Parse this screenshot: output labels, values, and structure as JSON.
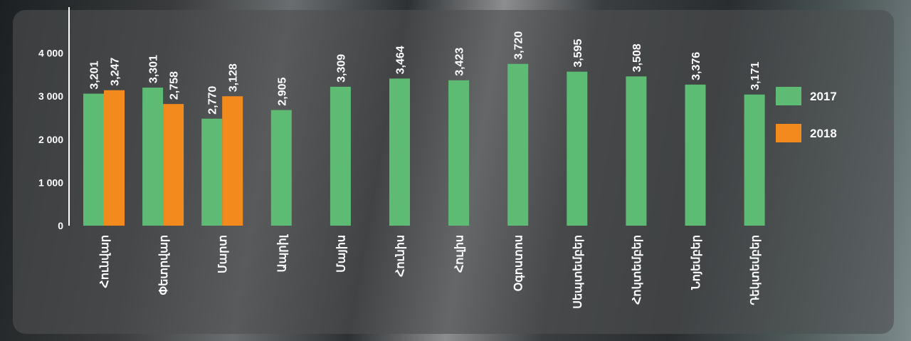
{
  "chart_data": {
    "type": "bar",
    "title": "",
    "xlabel": "",
    "ylabel": "",
    "ylim": [
      0,
      4300
    ],
    "yticks": [
      0,
      1000,
      2000,
      3000,
      4000
    ],
    "ytick_labels": [
      "0",
      "1 000",
      "2 000",
      "3 000",
      "4 000"
    ],
    "categories": [
      "Հունվար",
      "Փետրվար",
      "Մարտ",
      "Ապրիլ",
      "Մայիս",
      "Հունիս",
      "Հուլիս",
      "Օգոստոս",
      "Սեպտեմբեր",
      "Հոկտեմբեր",
      "Նոյեմբեր",
      "Դեկտեմբեր"
    ],
    "series": [
      {
        "name": "2017",
        "color": "#5dbb74",
        "values": [
          3201,
          3301,
          2770,
          2905,
          3309,
          3464,
          3423,
          3720,
          3595,
          3508,
          3376,
          3171
        ],
        "bar_heights": [
          3060,
          3200,
          2480,
          2680,
          3220,
          3410,
          3370,
          3750,
          3570,
          3460,
          3270,
          3040
        ],
        "labels": [
          "3,201",
          "3,301",
          "2,770",
          "2,905",
          "3,309",
          "3,464",
          "3,423",
          "3,720",
          "3,595",
          "3,508",
          "3,376",
          "3,171"
        ]
      },
      {
        "name": "2018",
        "color": "#f28a1e",
        "values": [
          3247,
          2758,
          3128,
          null,
          null,
          null,
          null,
          null,
          null,
          null,
          null,
          null
        ],
        "bar_heights": [
          3140,
          2820,
          3000,
          null,
          null,
          null,
          null,
          null,
          null,
          null,
          null,
          null
        ],
        "labels": [
          "3,247",
          "2,758",
          "3,128",
          null,
          null,
          null,
          null,
          null,
          null,
          null,
          null,
          null
        ]
      }
    ],
    "legend_position": "right",
    "grid": false
  }
}
